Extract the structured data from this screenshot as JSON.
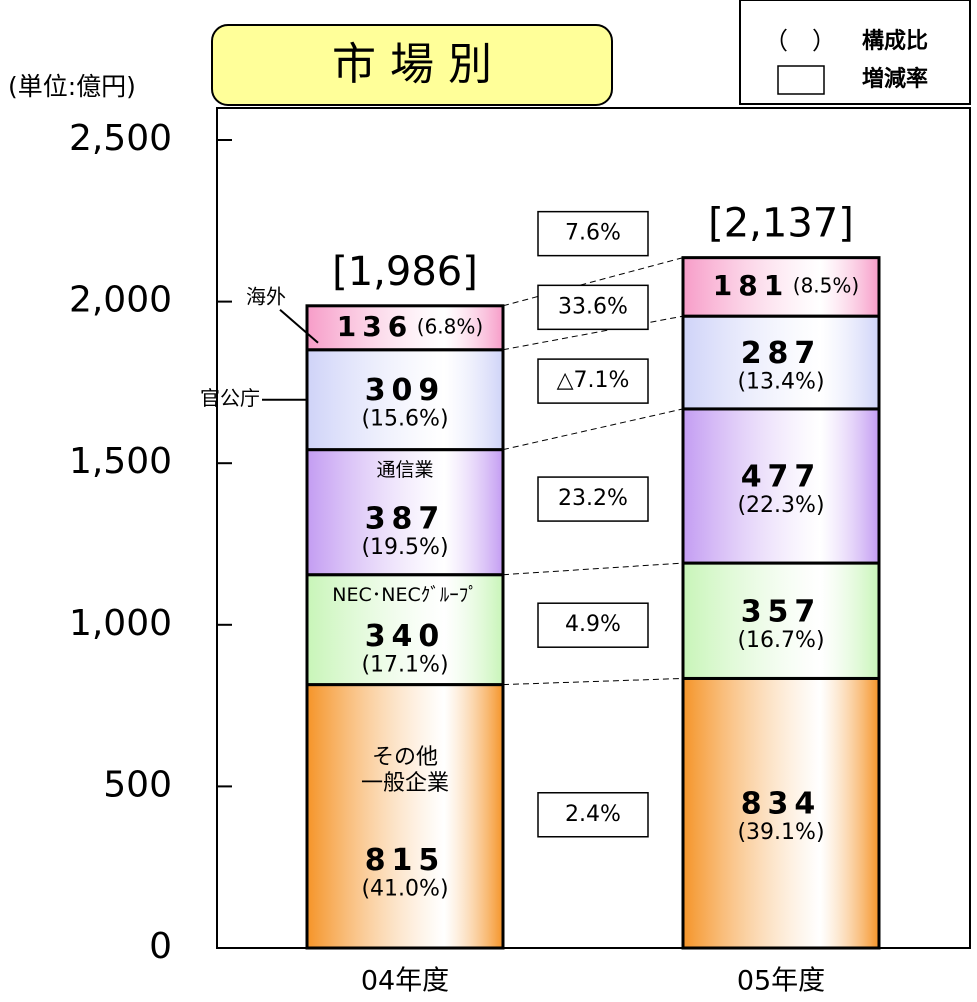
{
  "chart_data": {
    "type": "stacked_bar",
    "title": "市 場 別",
    "unit_label": "(単位:億円)",
    "legend": {
      "share_symbol": "（　）",
      "share_text": "構成比",
      "growth_text": "増減率"
    },
    "categories": [
      "04年度",
      "05年度"
    ],
    "ylim": [
      0,
      2500
    ],
    "yticks": [
      0,
      500,
      {
        "value": 1000,
        "label": "1,000"
      },
      {
        "value": 1500,
        "label": "1,500"
      },
      {
        "value": 2000,
        "label": "2,000"
      },
      {
        "value": 2500,
        "label": "2,500"
      }
    ],
    "series": [
      {
        "name": "その他\n一般企業",
        "name_position": "inside",
        "color": "#f59428",
        "values": [
          815,
          834
        ],
        "share_labels": [
          "(41.0%)",
          "(39.1%)"
        ],
        "growth_label": "2.4%"
      },
      {
        "name": "NEC･NECｸﾞﾙｰﾌﾟ",
        "name_position": "inside",
        "color": "#c8f5b8",
        "values": [
          340,
          357
        ],
        "share_labels": [
          "(17.1%)",
          "(16.7%)"
        ],
        "growth_label": "4.9%"
      },
      {
        "name": "通信業",
        "name_position": "inside",
        "color": "#c39cf2",
        "values": [
          387,
          477
        ],
        "share_labels": [
          "(19.5%)",
          "(22.3%)"
        ],
        "growth_label": "23.2%"
      },
      {
        "name": "官公庁",
        "name_position": "outside",
        "color": "#cfd3f8",
        "values": [
          309,
          287
        ],
        "share_labels": [
          "(15.6%)",
          "(13.4%)"
        ],
        "growth_label": "△7.1%"
      },
      {
        "name": "海外",
        "name_position": "outside",
        "color": "#f79cc8",
        "values": [
          136,
          181
        ],
        "share_labels": [
          "(6.8%)",
          "(8.5%)"
        ],
        "growth_label": "33.6%"
      }
    ],
    "total_labels": [
      "[1,986]",
      "[2,137]"
    ],
    "total_growth_label": "7.6%"
  }
}
